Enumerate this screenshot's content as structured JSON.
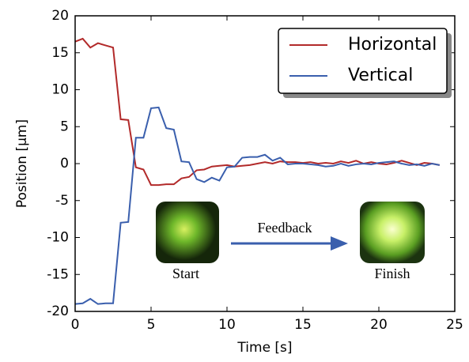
{
  "chart_data": {
    "type": "line",
    "xlabel": "Time [s]",
    "ylabel": "Position [μm]",
    "x": [
      0,
      0.5,
      1,
      1.5,
      2,
      2.5,
      3,
      3.5,
      4,
      4.5,
      5,
      5.5,
      6,
      6.5,
      7,
      7.5,
      8,
      8.5,
      9,
      9.5,
      10,
      10.5,
      11,
      11.5,
      12,
      12.5,
      13,
      13.5,
      14,
      14.5,
      15,
      15.5,
      16,
      16.5,
      17,
      17.5,
      18,
      18.5,
      19,
      19.5,
      20,
      20.5,
      21,
      21.5,
      22,
      22.5,
      23,
      23.5,
      24
    ],
    "series": [
      {
        "name": "Horizontal",
        "color": "#b22a2a",
        "values": [
          16.5,
          16.9,
          15.7,
          16.3,
          16.0,
          15.7,
          6.0,
          5.9,
          -0.5,
          -0.8,
          -2.9,
          -2.9,
          -2.8,
          -2.8,
          -2.0,
          -1.8,
          -0.9,
          -0.8,
          -0.4,
          -0.3,
          -0.2,
          -0.4,
          -0.3,
          -0.2,
          0.0,
          0.2,
          0.0,
          0.3,
          0.2,
          0.2,
          0.1,
          0.2,
          0.0,
          0.1,
          0.0,
          0.3,
          0.1,
          0.4,
          0.0,
          0.2,
          0.0,
          -0.1,
          0.1,
          0.4,
          0.1,
          -0.2,
          0.1,
          0.0,
          -0.2
        ]
      },
      {
        "name": "Vertical",
        "color": "#3a5fad",
        "values": [
          -19.0,
          -18.9,
          -18.3,
          -19.0,
          -18.9,
          -18.9,
          -8.0,
          -7.9,
          3.5,
          3.5,
          7.5,
          7.6,
          4.8,
          4.6,
          0.3,
          0.2,
          -2.1,
          -2.5,
          -1.9,
          -2.3,
          -0.5,
          -0.4,
          0.8,
          0.9,
          0.9,
          1.2,
          0.4,
          0.8,
          -0.1,
          0.0,
          0.0,
          -0.1,
          -0.2,
          -0.4,
          -0.3,
          0.0,
          -0.3,
          -0.1,
          0.0,
          -0.1,
          0.1,
          0.2,
          0.3,
          0.0,
          -0.2,
          -0.1,
          -0.3,
          0.0,
          -0.2
        ]
      }
    ],
    "xlim": [
      0,
      25
    ],
    "xticks": [
      0,
      5,
      10,
      15,
      20,
      25
    ],
    "ylim": [
      -20,
      20
    ],
    "yticks": [
      -20,
      -15,
      -10,
      -5,
      0,
      5,
      10,
      15,
      20
    ],
    "legend": "upper right",
    "annotations": {
      "start": "Start",
      "finish": "Finish",
      "arrow": "Feedback"
    }
  }
}
